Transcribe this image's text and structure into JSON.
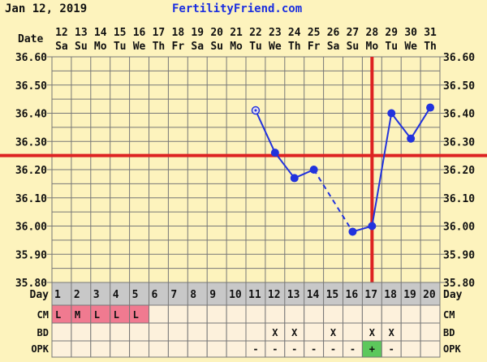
{
  "header": {
    "date": "Jan 12, 2019",
    "site": "FertilityFriend.com"
  },
  "colors": {
    "background": "#fdf3bd",
    "grid": "#777777",
    "line": "#2233dd",
    "coverline": "#dd2222",
    "menstruation": "#f07a90",
    "opk_positive": "#5cc85c",
    "day_row": "#c8c8c8",
    "table_cell": "#fdf1dc"
  },
  "chart_data": {
    "type": "line",
    "title": "",
    "ylabel_left": "",
    "ylim": [
      35.8,
      36.6
    ],
    "y_ticks": [
      "36.60",
      "36.50",
      "36.40",
      "36.30",
      "36.20",
      "36.10",
      "36.00",
      "35.90",
      "35.80"
    ],
    "date_label": "Date",
    "dates": [
      "12",
      "13",
      "14",
      "15",
      "16",
      "17",
      "18",
      "19",
      "20",
      "21",
      "22",
      "23",
      "24",
      "25",
      "26",
      "27",
      "28",
      "29",
      "30",
      "31"
    ],
    "weekdays": [
      "Sa",
      "Su",
      "Mo",
      "Tu",
      "We",
      "Th",
      "Fr",
      "Sa",
      "Su",
      "Mo",
      "Tu",
      "We",
      "Th",
      "Fr",
      "Sa",
      "Su",
      "Mo",
      "Tu",
      "We",
      "Th"
    ],
    "day_label": "Day",
    "days": [
      "1",
      "2",
      "3",
      "4",
      "5",
      "6",
      "7",
      "8",
      "9",
      "10",
      "11",
      "12",
      "13",
      "14",
      "15",
      "16",
      "17",
      "18",
      "19",
      "20"
    ],
    "temperatures": [
      null,
      null,
      null,
      null,
      null,
      null,
      null,
      null,
      null,
      null,
      36.41,
      36.26,
      36.17,
      36.2,
      null,
      35.98,
      36.0,
      36.4,
      36.31,
      36.42
    ],
    "open_point_days": [
      11
    ],
    "dashed_segments": [
      [
        14,
        16
      ]
    ],
    "coverline": 36.25,
    "ovulation_day": 17,
    "grid": true,
    "rows": [
      {
        "label": "CM",
        "values": [
          "L",
          "M",
          "L",
          "L",
          "L",
          "",
          "",
          "",
          "",
          "",
          "",
          "",
          "",
          "",
          "",
          "",
          "",
          "",
          "",
          ""
        ]
      },
      {
        "label": "BD",
        "values": [
          "",
          "",
          "",
          "",
          "",
          "",
          "",
          "",
          "",
          "",
          "",
          "X",
          "X",
          "",
          "X",
          "",
          "X",
          "X",
          "",
          ""
        ]
      },
      {
        "label": "OPK",
        "values": [
          "",
          "",
          "",
          "",
          "",
          "",
          "",
          "",
          "",
          "",
          "-",
          "-",
          "-",
          "-",
          "-",
          "-",
          "+",
          "-",
          "",
          ""
        ]
      }
    ]
  }
}
